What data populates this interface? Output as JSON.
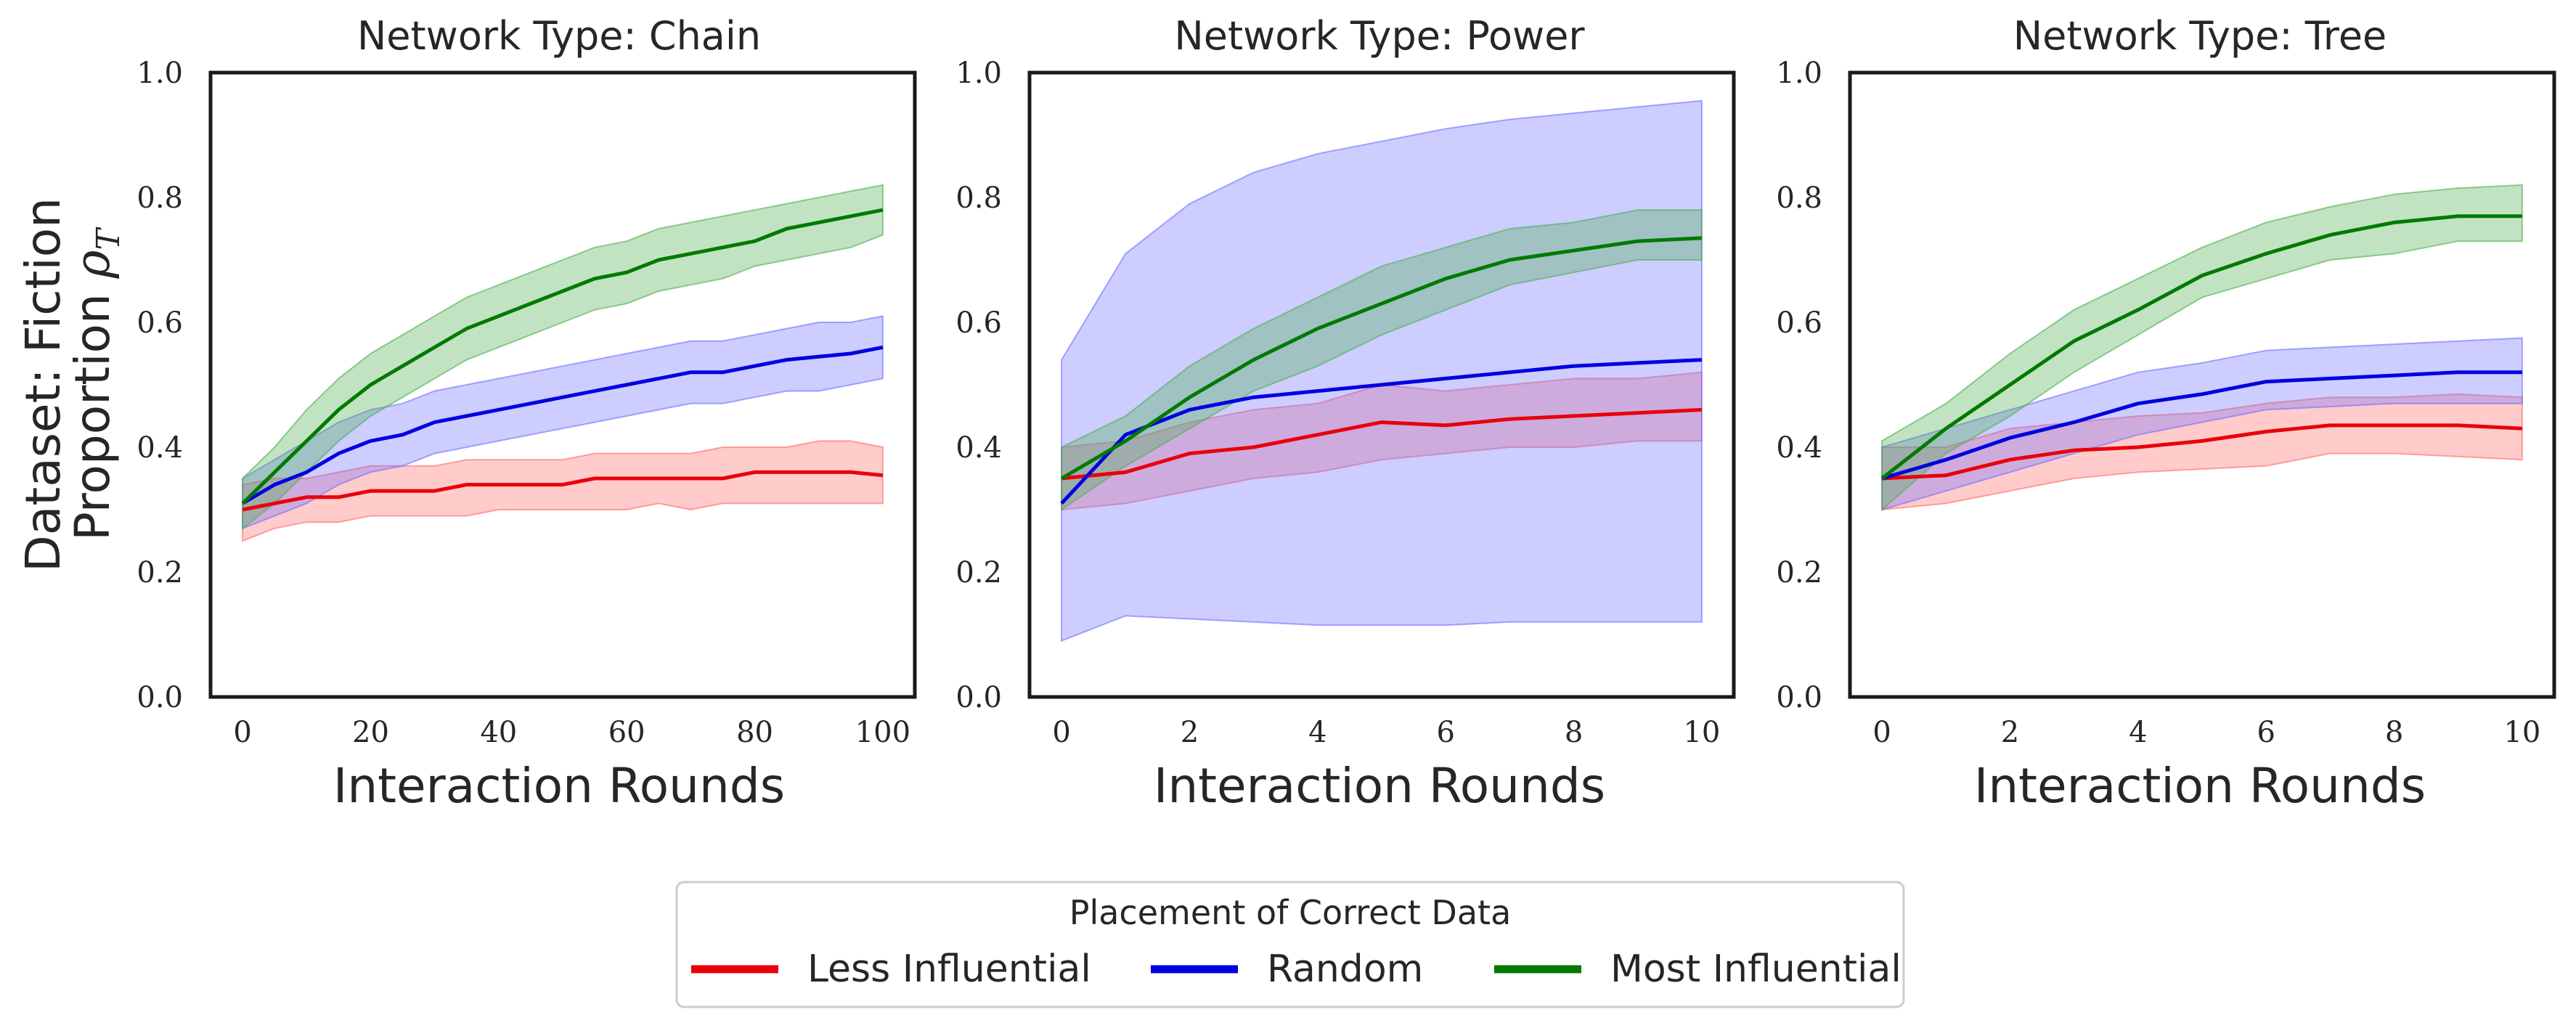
{
  "chart_data": [
    {
      "type": "line",
      "title": "Network Type: Chain",
      "xlabel": "Interaction Rounds",
      "ylabel_line1": "Dataset: Fiction",
      "ylabel_line2_text": "Proportion ",
      "ylabel_line2_symbol": "ρ",
      "ylabel_line2_subscript": "T",
      "xlim": [
        -5,
        105
      ],
      "ylim": [
        0.0,
        1.0
      ],
      "xticks": [
        0,
        20,
        40,
        60,
        80,
        100
      ],
      "xtick_labels": [
        "0",
        "20",
        "40",
        "60",
        "80",
        "100"
      ],
      "yticks": [
        0.0,
        0.2,
        0.4,
        0.6,
        0.8,
        1.0
      ],
      "ytick_labels": [
        "0.0",
        "0.2",
        "0.4",
        "0.6",
        "0.8",
        "1.0"
      ],
      "series": [
        {
          "name": "Less Influential",
          "x": [
            0,
            5,
            10,
            15,
            20,
            25,
            30,
            35,
            40,
            45,
            50,
            55,
            60,
            65,
            70,
            75,
            80,
            85,
            90,
            95,
            100
          ],
          "values": [
            0.3,
            0.31,
            0.32,
            0.32,
            0.33,
            0.33,
            0.33,
            0.34,
            0.34,
            0.34,
            0.34,
            0.35,
            0.35,
            0.35,
            0.35,
            0.35,
            0.36,
            0.36,
            0.36,
            0.36,
            0.355
          ],
          "lower": [
            0.25,
            0.27,
            0.28,
            0.28,
            0.29,
            0.29,
            0.29,
            0.29,
            0.3,
            0.3,
            0.3,
            0.3,
            0.3,
            0.31,
            0.3,
            0.31,
            0.31,
            0.31,
            0.31,
            0.31,
            0.31
          ],
          "upper": [
            0.34,
            0.35,
            0.35,
            0.36,
            0.37,
            0.37,
            0.37,
            0.38,
            0.38,
            0.38,
            0.38,
            0.39,
            0.39,
            0.39,
            0.39,
            0.4,
            0.4,
            0.4,
            0.41,
            0.41,
            0.4
          ]
        },
        {
          "name": "Random",
          "x": [
            0,
            5,
            10,
            15,
            20,
            25,
            30,
            35,
            40,
            45,
            50,
            55,
            60,
            65,
            70,
            75,
            80,
            85,
            90,
            95,
            100
          ],
          "values": [
            0.31,
            0.34,
            0.36,
            0.39,
            0.41,
            0.42,
            0.44,
            0.45,
            0.46,
            0.47,
            0.48,
            0.49,
            0.5,
            0.51,
            0.52,
            0.52,
            0.53,
            0.54,
            0.545,
            0.55,
            0.56
          ],
          "lower": [
            0.27,
            0.29,
            0.31,
            0.34,
            0.36,
            0.37,
            0.39,
            0.4,
            0.41,
            0.42,
            0.43,
            0.44,
            0.45,
            0.46,
            0.47,
            0.47,
            0.48,
            0.49,
            0.49,
            0.5,
            0.51
          ],
          "upper": [
            0.35,
            0.38,
            0.41,
            0.44,
            0.46,
            0.47,
            0.49,
            0.5,
            0.51,
            0.52,
            0.53,
            0.54,
            0.55,
            0.56,
            0.57,
            0.57,
            0.58,
            0.59,
            0.6,
            0.6,
            0.61
          ]
        },
        {
          "name": "Most Influential",
          "x": [
            0,
            5,
            10,
            15,
            20,
            25,
            30,
            35,
            40,
            45,
            50,
            55,
            60,
            65,
            70,
            75,
            80,
            85,
            90,
            95,
            100
          ],
          "values": [
            0.31,
            0.36,
            0.41,
            0.46,
            0.5,
            0.53,
            0.56,
            0.59,
            0.61,
            0.63,
            0.65,
            0.67,
            0.68,
            0.7,
            0.71,
            0.72,
            0.73,
            0.75,
            0.76,
            0.77,
            0.78
          ],
          "lower": [
            0.27,
            0.31,
            0.36,
            0.41,
            0.45,
            0.48,
            0.51,
            0.54,
            0.56,
            0.58,
            0.6,
            0.62,
            0.63,
            0.65,
            0.66,
            0.67,
            0.69,
            0.7,
            0.71,
            0.72,
            0.74
          ],
          "upper": [
            0.35,
            0.4,
            0.46,
            0.51,
            0.55,
            0.58,
            0.61,
            0.64,
            0.66,
            0.68,
            0.7,
            0.72,
            0.73,
            0.75,
            0.76,
            0.77,
            0.78,
            0.79,
            0.8,
            0.81,
            0.82
          ]
        }
      ]
    },
    {
      "type": "line",
      "title": "Network Type: Power",
      "xlabel": "Interaction Rounds",
      "xlim": [
        -0.5,
        10.5
      ],
      "ylim": [
        0.0,
        1.0
      ],
      "xticks": [
        0,
        2,
        4,
        6,
        8,
        10
      ],
      "xtick_labels": [
        "0",
        "2",
        "4",
        "6",
        "8",
        "10"
      ],
      "yticks": [
        0.0,
        0.2,
        0.4,
        0.6,
        0.8,
        1.0
      ],
      "ytick_labels": [
        "0.0",
        "0.2",
        "0.4",
        "0.6",
        "0.8",
        "1.0"
      ],
      "series": [
        {
          "name": "Less Influential",
          "x": [
            0,
            1,
            2,
            3,
            4,
            5,
            6,
            7,
            8,
            9,
            10
          ],
          "values": [
            0.35,
            0.36,
            0.39,
            0.4,
            0.42,
            0.44,
            0.435,
            0.445,
            0.45,
            0.455,
            0.46
          ],
          "lower": [
            0.3,
            0.31,
            0.33,
            0.35,
            0.36,
            0.38,
            0.39,
            0.4,
            0.4,
            0.41,
            0.41
          ],
          "upper": [
            0.4,
            0.41,
            0.44,
            0.46,
            0.47,
            0.5,
            0.49,
            0.5,
            0.51,
            0.51,
            0.52
          ]
        },
        {
          "name": "Random",
          "x": [
            0,
            1,
            2,
            3,
            4,
            5,
            6,
            7,
            8,
            9,
            10
          ],
          "values": [
            0.31,
            0.42,
            0.46,
            0.48,
            0.49,
            0.5,
            0.51,
            0.52,
            0.53,
            0.535,
            0.54
          ],
          "lower": [
            0.09,
            0.13,
            0.125,
            0.12,
            0.115,
            0.115,
            0.115,
            0.12,
            0.12,
            0.12,
            0.12
          ],
          "upper": [
            0.54,
            0.71,
            0.79,
            0.84,
            0.87,
            0.89,
            0.91,
            0.925,
            0.935,
            0.945,
            0.955
          ]
        },
        {
          "name": "Most Influential",
          "x": [
            0,
            1,
            2,
            3,
            4,
            5,
            6,
            7,
            8,
            9,
            10
          ],
          "values": [
            0.35,
            0.41,
            0.48,
            0.54,
            0.59,
            0.63,
            0.67,
            0.7,
            0.715,
            0.73,
            0.735
          ],
          "lower": [
            0.3,
            0.37,
            0.43,
            0.49,
            0.53,
            0.58,
            0.62,
            0.66,
            0.68,
            0.7,
            0.7
          ],
          "upper": [
            0.4,
            0.45,
            0.53,
            0.59,
            0.64,
            0.69,
            0.72,
            0.75,
            0.76,
            0.78,
            0.78
          ]
        }
      ]
    },
    {
      "type": "line",
      "title": "Network Type: Tree",
      "xlabel": "Interaction Rounds",
      "xlim": [
        -0.5,
        10.5
      ],
      "ylim": [
        0.0,
        1.0
      ],
      "xticks": [
        0,
        2,
        4,
        6,
        8,
        10
      ],
      "xtick_labels": [
        "0",
        "2",
        "4",
        "6",
        "8",
        "10"
      ],
      "yticks": [
        0.0,
        0.2,
        0.4,
        0.6,
        0.8,
        1.0
      ],
      "ytick_labels": [
        "0.0",
        "0.2",
        "0.4",
        "0.6",
        "0.8",
        "1.0"
      ],
      "series": [
        {
          "name": "Less Influential",
          "x": [
            0,
            1,
            2,
            3,
            4,
            5,
            6,
            7,
            8,
            9,
            10
          ],
          "values": [
            0.35,
            0.355,
            0.38,
            0.395,
            0.4,
            0.41,
            0.425,
            0.435,
            0.435,
            0.435,
            0.43
          ],
          "lower": [
            0.3,
            0.31,
            0.33,
            0.35,
            0.36,
            0.365,
            0.37,
            0.39,
            0.39,
            0.385,
            0.38
          ],
          "upper": [
            0.4,
            0.4,
            0.43,
            0.44,
            0.45,
            0.455,
            0.47,
            0.48,
            0.48,
            0.485,
            0.48
          ]
        },
        {
          "name": "Random",
          "x": [
            0,
            1,
            2,
            3,
            4,
            5,
            6,
            7,
            8,
            9,
            10
          ],
          "values": [
            0.35,
            0.38,
            0.415,
            0.44,
            0.47,
            0.485,
            0.505,
            0.51,
            0.515,
            0.52,
            0.52
          ],
          "lower": [
            0.3,
            0.33,
            0.36,
            0.39,
            0.42,
            0.44,
            0.46,
            0.465,
            0.47,
            0.47,
            0.47
          ],
          "upper": [
            0.4,
            0.43,
            0.46,
            0.49,
            0.52,
            0.535,
            0.555,
            0.56,
            0.565,
            0.57,
            0.575
          ]
        },
        {
          "name": "Most Influential",
          "x": [
            0,
            1,
            2,
            3,
            4,
            5,
            6,
            7,
            8,
            9,
            10
          ],
          "values": [
            0.35,
            0.43,
            0.5,
            0.57,
            0.62,
            0.675,
            0.71,
            0.74,
            0.76,
            0.77,
            0.77
          ],
          "lower": [
            0.3,
            0.39,
            0.45,
            0.52,
            0.58,
            0.64,
            0.67,
            0.7,
            0.71,
            0.73,
            0.73
          ],
          "upper": [
            0.41,
            0.47,
            0.55,
            0.62,
            0.67,
            0.72,
            0.76,
            0.785,
            0.805,
            0.815,
            0.82
          ]
        }
      ]
    }
  ],
  "legend": {
    "title": "Placement of Correct Data",
    "items": [
      {
        "label": "Less Influential",
        "color": "#e8000b"
      },
      {
        "label": "Random",
        "color": "#0000e0"
      },
      {
        "label": "Most Influential",
        "color": "#007a00"
      }
    ]
  },
  "colors": {
    "Less Influential": {
      "line": "#e8000b",
      "band": "#ff6b6b"
    },
    "Random": {
      "line": "#0000e0",
      "band": "#7070ff"
    },
    "Most Influential": {
      "line": "#007a00",
      "band": "#4caf50"
    },
    "axes": "#1a1a1a",
    "text": "#262626",
    "legend_border": "#cccccc"
  }
}
